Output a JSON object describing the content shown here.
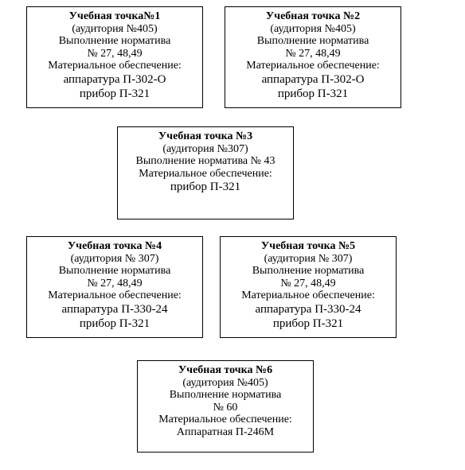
{
  "boxes": [
    {
      "title": "Учебная точка№1",
      "room": "(аудитория №405)",
      "norm_label": "Выполнение норматива",
      "norm_numbers": "№ 27, 48,49",
      "support_label": "Материальное обеспечение:",
      "equipment1": "аппаратура П-302-О",
      "equipment2": "прибор П-321"
    },
    {
      "title": "Учебная точка №2",
      "room": "(аудитория №405)",
      "norm_label": "Выполнение норматива",
      "norm_numbers": "№ 27, 48,49",
      "support_label": "Материальное обеспечение:",
      "equipment1": "аппаратура П-302-О",
      "equipment2": "прибор П-321"
    },
    {
      "title": "Учебная точка №3",
      "room": "(аудитория №307)",
      "norm_label": "Выполнение норматива № 43",
      "support_label": "Материальное обеспечение:",
      "equipment1": "прибор П-321"
    },
    {
      "title": "Учебная точка №4",
      "room": "(аудитория № 307)",
      "norm_label": "Выполнение норматива",
      "norm_numbers": "№ 27, 48,49",
      "support_label": "Материальное обеспечение:",
      "equipment1": "аппаратура П-330-24",
      "equipment2": "прибор П-321"
    },
    {
      "title": "Учебная точка №5",
      "room": "(аудитория № 307)",
      "norm_label": "Выполнение норматива",
      "norm_numbers": "№ 27, 48,49",
      "support_label": "Материальное обеспечение:",
      "equipment1": "аппаратура П-330-24",
      "equipment2": "прибор П-321"
    },
    {
      "title": "Учебная точка №6",
      "room": "(аудитория №405)",
      "norm_label": "Выполнение норматива",
      "norm_numbers": "№ 60",
      "support_label": "Материальное обеспечение:",
      "equipment1": "Аппаратная П-246М"
    }
  ]
}
